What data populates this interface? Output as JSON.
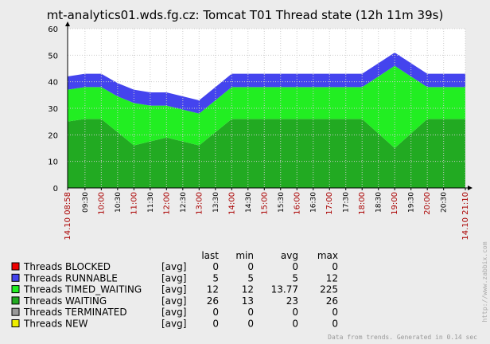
{
  "title": "mt-analytics01.wds.fg.cz: Tomcat T01 Thread state  (12h 11m 39s)",
  "colors": {
    "background": "#ececec",
    "plot": "#ffffff",
    "grid": "#cccccc",
    "axis_text_red": "#aa0000",
    "blocked": "#ee0000",
    "runnable": "#4444ee",
    "timed_waiting": "#22ee22",
    "waiting": "#22aa22",
    "terminated": "#999999",
    "new": "#eeee00"
  },
  "chart_data": {
    "type": "area",
    "stacked": true,
    "ylim": [
      0,
      60
    ],
    "yticks": [
      0,
      10,
      20,
      30,
      40,
      50,
      60
    ],
    "x": [
      "08:58",
      "09:30",
      "10:00",
      "10:30",
      "11:00",
      "11:30",
      "12:00",
      "12:30",
      "13:00",
      "13:30",
      "14:00",
      "14:30",
      "15:00",
      "15:30",
      "16:00",
      "16:30",
      "17:00",
      "17:30",
      "18:00",
      "18:30",
      "19:00",
      "19:30",
      "20:00",
      "20:30",
      "21:10"
    ],
    "x_minutes": [
      0,
      32,
      62,
      92,
      122,
      152,
      182,
      212,
      242,
      272,
      302,
      332,
      362,
      392,
      422,
      452,
      482,
      512,
      542,
      572,
      602,
      632,
      662,
      692,
      732
    ],
    "x_tick_labels": [
      {
        "label": "14.10 08:58",
        "major": true,
        "red": true
      },
      {
        "label": "09:30",
        "major": false,
        "red": false
      },
      {
        "label": "10:00",
        "major": true,
        "red": true
      },
      {
        "label": "10:30",
        "major": false,
        "red": false
      },
      {
        "label": "11:00",
        "major": true,
        "red": true
      },
      {
        "label": "11:30",
        "major": false,
        "red": false
      },
      {
        "label": "12:00",
        "major": true,
        "red": true
      },
      {
        "label": "12:30",
        "major": false,
        "red": false
      },
      {
        "label": "13:00",
        "major": true,
        "red": true
      },
      {
        "label": "13:30",
        "major": false,
        "red": false
      },
      {
        "label": "14:00",
        "major": true,
        "red": true
      },
      {
        "label": "14:30",
        "major": false,
        "red": false
      },
      {
        "label": "15:00",
        "major": true,
        "red": true
      },
      {
        "label": "15:30",
        "major": false,
        "red": false
      },
      {
        "label": "16:00",
        "major": true,
        "red": true
      },
      {
        "label": "16:30",
        "major": false,
        "red": false
      },
      {
        "label": "17:00",
        "major": true,
        "red": true
      },
      {
        "label": "17:30",
        "major": false,
        "red": false
      },
      {
        "label": "18:00",
        "major": true,
        "red": true
      },
      {
        "label": "18:30",
        "major": false,
        "red": false
      },
      {
        "label": "19:00",
        "major": true,
        "red": true
      },
      {
        "label": "19:30",
        "major": false,
        "red": false
      },
      {
        "label": "20:00",
        "major": true,
        "red": true
      },
      {
        "label": "20:30",
        "major": false,
        "red": false
      },
      {
        "label": "14.10 21:10",
        "major": true,
        "red": true
      }
    ],
    "series": [
      {
        "name": "Threads WAITING",
        "color": "#22aa22",
        "values": [
          25,
          26,
          26,
          21,
          16,
          17.5,
          19,
          17.5,
          16,
          21,
          26,
          26,
          26,
          26,
          26,
          26,
          26,
          26,
          26,
          20.5,
          15,
          20.5,
          26,
          26,
          26
        ]
      },
      {
        "name": "Threads TIMED_WAITING",
        "color": "#22ee22",
        "values": [
          12,
          12,
          12,
          13.5,
          16,
          13.5,
          12,
          12,
          12,
          12,
          12,
          12,
          12,
          12,
          12,
          12,
          12,
          12,
          12,
          21.5,
          31,
          21.5,
          12,
          12,
          12
        ]
      },
      {
        "name": "Threads RUNNABLE",
        "color": "#4444ee",
        "values": [
          5,
          5,
          5,
          5,
          5,
          5,
          5,
          5,
          5,
          5,
          5,
          5,
          5,
          5,
          5,
          5,
          5,
          5,
          5,
          5,
          5,
          5,
          5,
          5,
          5
        ]
      },
      {
        "name": "Threads BLOCKED",
        "color": "#ee0000",
        "values": [
          0,
          0,
          0,
          0,
          0,
          0,
          0,
          0,
          0,
          0,
          0,
          0,
          0,
          0,
          0,
          0,
          0,
          0,
          0,
          0,
          0,
          0,
          0,
          0,
          0
        ]
      }
    ],
    "grid": true
  },
  "legend": {
    "headers": [
      "last",
      "min",
      "avg",
      "max"
    ],
    "rows": [
      {
        "name": "Threads BLOCKED",
        "color": "#ee0000",
        "func": "[avg]",
        "last": "0",
        "min": "0",
        "avg": "0",
        "max": "0"
      },
      {
        "name": "Threads RUNNABLE",
        "color": "#4444ee",
        "func": "[avg]",
        "last": "5",
        "min": "5",
        "avg": "5",
        "max": "12"
      },
      {
        "name": "Threads TIMED_WAITING",
        "color": "#22ee22",
        "func": "[avg]",
        "last": "12",
        "min": "12",
        "avg": "13.77",
        "max": "225"
      },
      {
        "name": "Threads WAITING",
        "color": "#22aa22",
        "func": "[avg]",
        "last": "26",
        "min": "13",
        "avg": "23",
        "max": "26"
      },
      {
        "name": "Threads TERMINATED",
        "color": "#999999",
        "func": "[avg]",
        "last": "0",
        "min": "0",
        "avg": "0",
        "max": "0"
      },
      {
        "name": "Threads NEW",
        "color": "#eeee00",
        "func": "[avg]",
        "last": "0",
        "min": "0",
        "avg": "0",
        "max": "0"
      }
    ]
  },
  "footer": "Data from trends. Generated in 0.14 sec",
  "watermark": "http://www.zabbix.com"
}
